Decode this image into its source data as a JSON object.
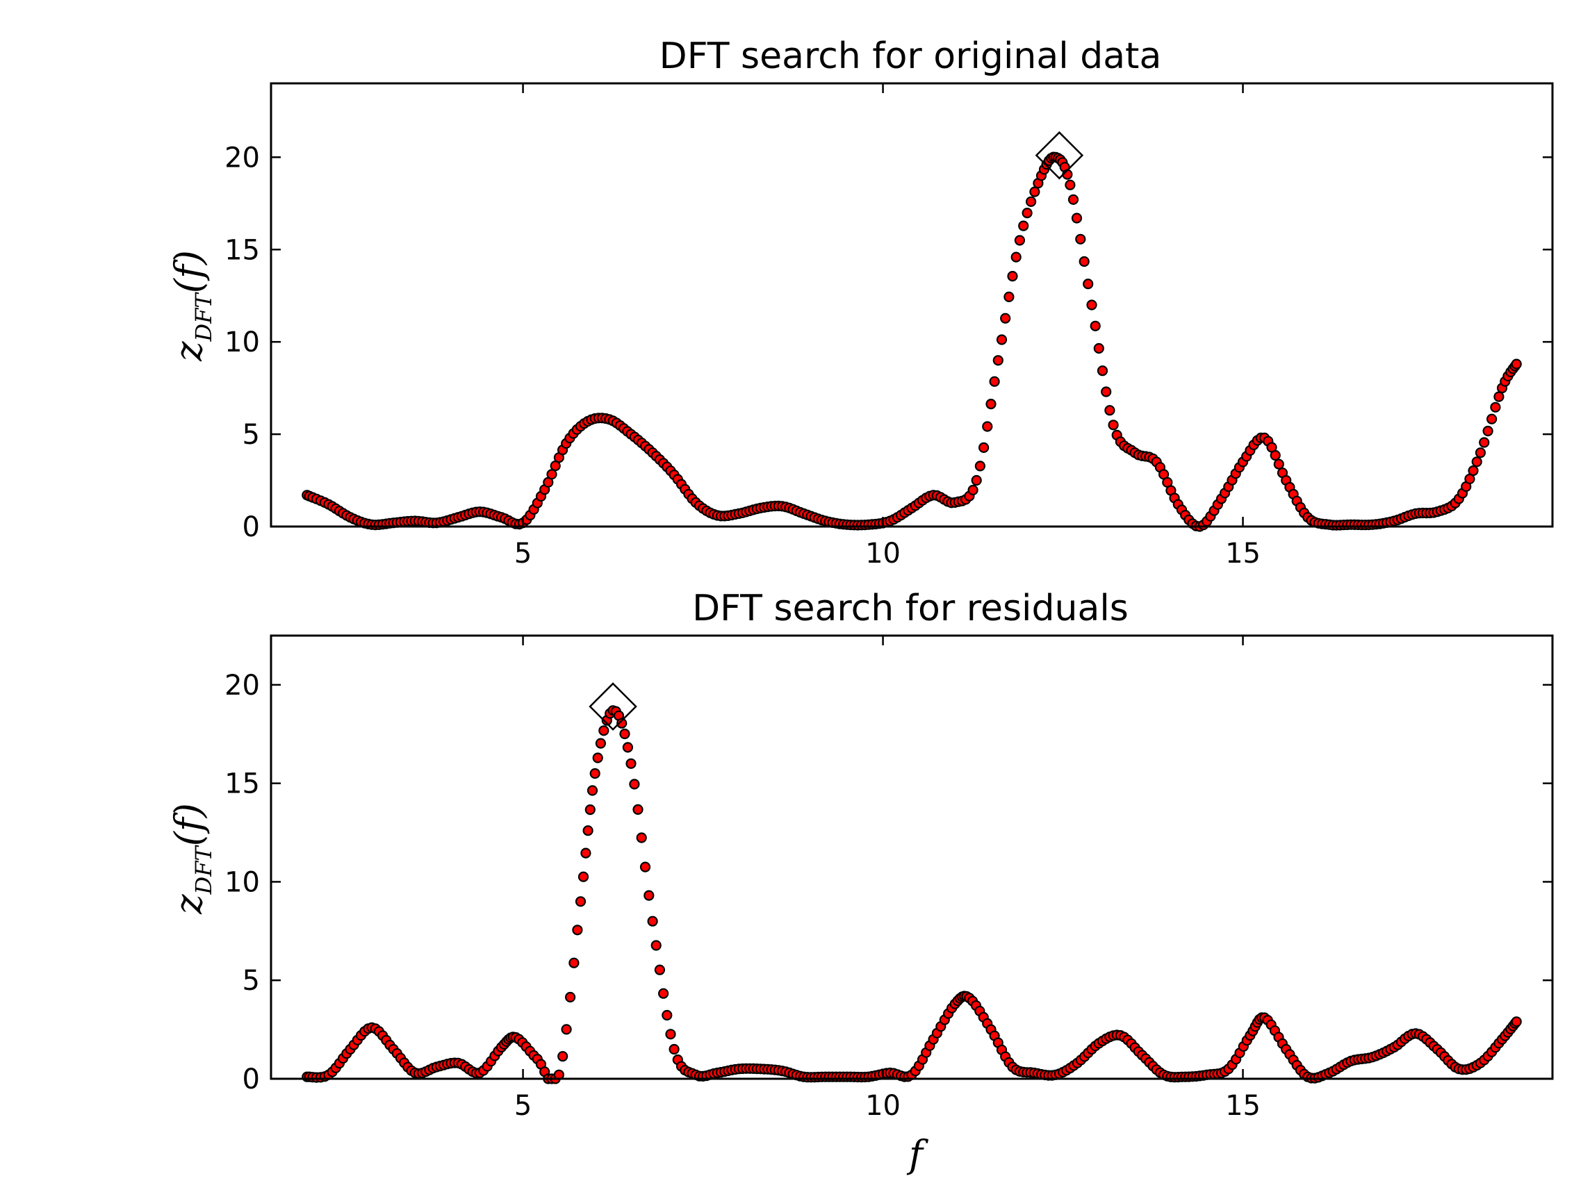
{
  "chart_data": [
    {
      "type": "scatter",
      "title": "DFT search for original data",
      "xlabel": "",
      "ylabel": "z_DFT(f)",
      "ylabel_main": "z",
      "ylabel_sub": "DFT",
      "ylabel_arg": "(f)",
      "xlim": [
        1.5,
        19.3
      ],
      "ylim": [
        0,
        24
      ],
      "xticks": [
        5,
        10,
        15
      ],
      "yticks": [
        0,
        5,
        10,
        15,
        20
      ],
      "series": [
        {
          "marker_color": "#ff0000",
          "line_color": "#000000",
          "x": [
            2.0,
            2.3,
            2.6,
            2.9,
            3.2,
            3.5,
            3.8,
            4.1,
            4.4,
            4.7,
            5.0,
            5.3,
            5.6,
            5.9,
            6.2,
            6.5,
            6.8,
            7.1,
            7.4,
            7.7,
            8.0,
            8.3,
            8.6,
            8.9,
            9.2,
            9.5,
            9.8,
            10.1,
            10.4,
            10.7,
            11.0,
            11.3,
            11.6,
            11.9,
            12.2,
            12.4,
            12.6,
            12.9,
            13.2,
            13.5,
            13.8,
            14.1,
            14.4,
            14.7,
            15.0,
            15.3,
            15.6,
            15.9,
            16.2,
            16.5,
            16.8,
            17.1,
            17.4,
            17.7,
            18.0,
            18.3,
            18.6,
            18.8
          ],
          "y": [
            1.7,
            1.2,
            0.5,
            0.1,
            0.2,
            0.3,
            0.2,
            0.5,
            0.8,
            0.5,
            0.2,
            2.0,
            4.5,
            5.7,
            5.8,
            5.0,
            4.0,
            2.8,
            1.3,
            0.6,
            0.7,
            1.0,
            1.1,
            0.7,
            0.3,
            0.1,
            0.1,
            0.3,
            1.0,
            1.7,
            1.3,
            2.5,
            9.0,
            15.5,
            19.0,
            20.0,
            18.5,
            12.0,
            5.5,
            4.0,
            3.5,
            1.2,
            0.0,
            1.5,
            3.5,
            4.8,
            2.5,
            0.5,
            0.1,
            0.1,
            0.1,
            0.3,
            0.7,
            0.8,
            1.5,
            4.0,
            7.5,
            8.8
          ]
        }
      ],
      "peak": {
        "x": 12.45,
        "y": 20.1
      }
    },
    {
      "type": "scatter",
      "title": "DFT search for residuals",
      "xlabel": "f",
      "ylabel": "z_DFT(f)",
      "ylabel_main": "z",
      "ylabel_sub": "DFT",
      "ylabel_arg": "(f)",
      "xlim": [
        1.5,
        19.3
      ],
      "ylim": [
        0,
        22.5
      ],
      "xticks": [
        5,
        10,
        15
      ],
      "yticks": [
        0,
        5,
        10,
        15,
        20
      ],
      "series": [
        {
          "marker_color": "#ff0000",
          "line_color": "#000000",
          "x": [
            2.0,
            2.3,
            2.6,
            2.9,
            3.2,
            3.5,
            3.8,
            4.1,
            4.4,
            4.7,
            4.9,
            5.2,
            5.5,
            5.8,
            6.0,
            6.25,
            6.5,
            6.8,
            7.1,
            7.4,
            7.7,
            8.0,
            8.3,
            8.6,
            8.9,
            9.2,
            9.5,
            9.8,
            10.1,
            10.4,
            10.7,
            11.0,
            11.2,
            11.5,
            11.8,
            12.1,
            12.4,
            12.7,
            13.0,
            13.3,
            13.6,
            13.9,
            14.2,
            14.5,
            14.8,
            15.1,
            15.3,
            15.6,
            15.9,
            16.2,
            16.5,
            16.8,
            17.1,
            17.4,
            17.7,
            18.0,
            18.3,
            18.6,
            18.8
          ],
          "y": [
            0.1,
            0.2,
            1.5,
            2.6,
            1.5,
            0.3,
            0.6,
            0.8,
            0.3,
            1.6,
            2.1,
            1.0,
            0.2,
            9.0,
            15.5,
            18.7,
            16.0,
            8.0,
            1.5,
            0.2,
            0.3,
            0.5,
            0.5,
            0.4,
            0.1,
            0.1,
            0.1,
            0.1,
            0.3,
            0.2,
            2.0,
            3.8,
            4.1,
            2.5,
            0.6,
            0.3,
            0.2,
            0.8,
            1.8,
            2.2,
            1.2,
            0.2,
            0.1,
            0.2,
            0.5,
            2.2,
            3.1,
            1.5,
            0.1,
            0.3,
            0.9,
            1.1,
            1.6,
            2.3,
            1.5,
            0.5,
            0.8,
            2.0,
            2.9
          ]
        }
      ],
      "peak": {
        "x": 6.25,
        "y": 18.9
      }
    }
  ]
}
